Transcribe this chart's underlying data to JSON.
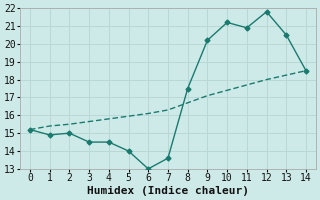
{
  "line1_x": [
    0,
    1,
    2,
    3,
    4,
    5,
    6,
    7,
    8,
    9,
    10,
    11,
    12,
    13,
    14
  ],
  "line1_y": [
    15.2,
    14.9,
    15.0,
    14.5,
    14.5,
    14.0,
    13.0,
    13.6,
    17.5,
    20.2,
    21.2,
    20.9,
    21.8,
    20.5,
    18.5
  ],
  "line2_x": [
    0,
    1,
    2,
    3,
    4,
    5,
    6,
    7,
    8,
    9,
    10,
    11,
    12,
    13,
    14
  ],
  "line2_y": [
    15.2,
    15.4,
    15.5,
    15.65,
    15.8,
    15.95,
    16.1,
    16.3,
    16.7,
    17.1,
    17.4,
    17.7,
    18.0,
    18.25,
    18.5
  ],
  "line_color": "#1a7a6e",
  "bg_color": "#ceeae8",
  "grid_color": "#b8d8d6",
  "xlabel": "Humidex (Indice chaleur)",
  "xlim": [
    -0.5,
    14.5
  ],
  "ylim": [
    13,
    22
  ],
  "xticks": [
    0,
    1,
    2,
    3,
    4,
    5,
    6,
    7,
    8,
    9,
    10,
    11,
    12,
    13,
    14
  ],
  "yticks": [
    13,
    14,
    15,
    16,
    17,
    18,
    19,
    20,
    21,
    22
  ],
  "marker": "D",
  "markersize": 2.5,
  "linewidth": 1.0,
  "xlabel_fontsize": 8,
  "tick_fontsize": 7
}
